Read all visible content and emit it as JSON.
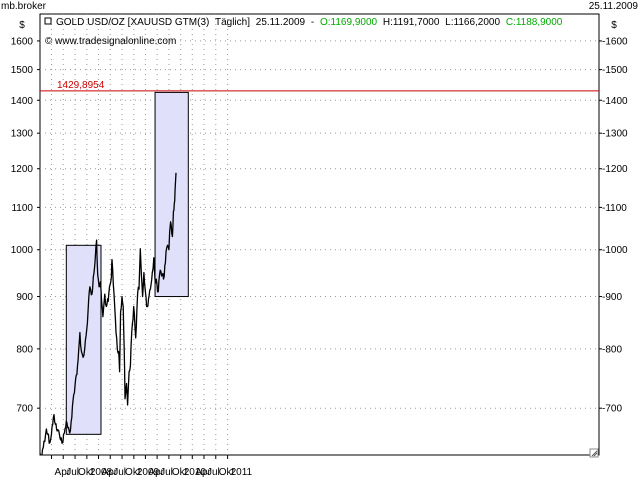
{
  "header": {
    "broker": "mb.broker",
    "date": "25.11.2009"
  },
  "legend": {
    "instrument": "GOLD USD/OZ [XAUUSD GTM(3)",
    "period": "Täglich]",
    "date": "25.11.2009",
    "open": "O:1169,9000",
    "high": "H:1191,7000",
    "low": "L:1166,2000",
    "close": "C:1188,9000",
    "copyright": "© www.tradesignalonline.com"
  },
  "colors": {
    "price_line": "#000000",
    "open_text": "#00aa00",
    "close_text": "#00aa00",
    "hline": "#cc0000",
    "box_fill": "#e0e0fa",
    "grid": "#999999"
  },
  "chart_data": {
    "type": "line",
    "ylabel": "$",
    "yscale": "log",
    "ylim": [
      630,
      1700
    ],
    "y_ticks": [
      700,
      800,
      900,
      1000,
      1100,
      1200,
      1300,
      1400,
      1500,
      1600
    ],
    "x_ticks": [
      "Apr",
      "Jul",
      "Okt",
      "2008",
      "Apr",
      "Jul",
      "Okt",
      "2009",
      "Apr",
      "Jul",
      "Okt",
      "2010",
      "Apr",
      "Jul",
      "Okt",
      "2011"
    ],
    "horizontal_line": {
      "value": 1429.8954,
      "label": "1429,8954"
    },
    "boxes": [
      {
        "x_start": "2007-07-25",
        "x_end": "2008-04-20",
        "y_low": 660,
        "y_high": 1010
      },
      {
        "x_start": "2009-06-15",
        "x_end": "2010-03-01",
        "y_low": 900,
        "y_high": 1425
      }
    ],
    "series": [
      {
        "points": [
          [
            "2007-01-02",
            632
          ],
          [
            "2007-01-15",
            628
          ],
          [
            "2007-02-01",
            650
          ],
          [
            "2007-02-20",
            668
          ],
          [
            "2007-03-01",
            660
          ],
          [
            "2007-03-20",
            648
          ],
          [
            "2007-04-05",
            672
          ],
          [
            "2007-04-20",
            690
          ],
          [
            "2007-05-01",
            675
          ],
          [
            "2007-05-15",
            665
          ],
          [
            "2007-06-01",
            660
          ],
          [
            "2007-06-15",
            655
          ],
          [
            "2007-06-28",
            648
          ],
          [
            "2007-07-10",
            662
          ],
          [
            "2007-07-25",
            680
          ],
          [
            "2007-08-05",
            670
          ],
          [
            "2007-08-20",
            662
          ],
          [
            "2007-09-01",
            680
          ],
          [
            "2007-09-15",
            712
          ],
          [
            "2007-10-01",
            738
          ],
          [
            "2007-10-15",
            755
          ],
          [
            "2007-10-25",
            780
          ],
          [
            "2007-11-08",
            830
          ],
          [
            "2007-11-20",
            795
          ],
          [
            "2007-12-03",
            785
          ],
          [
            "2007-12-15",
            800
          ],
          [
            "2007-12-31",
            835
          ],
          [
            "2008-01-15",
            895
          ],
          [
            "2008-01-25",
            920
          ],
          [
            "2008-02-10",
            905
          ],
          [
            "2008-02-25",
            948
          ],
          [
            "2008-03-05",
            975
          ],
          [
            "2008-03-17",
            1022
          ],
          [
            "2008-03-25",
            945
          ],
          [
            "2008-04-05",
            920
          ],
          [
            "2008-04-15",
            930
          ],
          [
            "2008-04-25",
            890
          ],
          [
            "2008-05-05",
            860
          ],
          [
            "2008-05-20",
            905
          ],
          [
            "2008-06-01",
            880
          ],
          [
            "2008-06-15",
            890
          ],
          [
            "2008-06-30",
            925
          ],
          [
            "2008-07-10",
            940
          ],
          [
            "2008-07-15",
            978
          ],
          [
            "2008-07-25",
            925
          ],
          [
            "2008-08-05",
            880
          ],
          [
            "2008-08-15",
            830
          ],
          [
            "2008-08-25",
            800
          ],
          [
            "2008-09-05",
            795
          ],
          [
            "2008-09-12",
            760
          ],
          [
            "2008-09-20",
            870
          ],
          [
            "2008-10-01",
            900
          ],
          [
            "2008-10-10",
            880
          ],
          [
            "2008-10-18",
            800
          ],
          [
            "2008-10-24",
            715
          ],
          [
            "2008-11-05",
            740
          ],
          [
            "2008-11-13",
            705
          ],
          [
            "2008-11-25",
            760
          ],
          [
            "2008-12-05",
            770
          ],
          [
            "2008-12-15",
            830
          ],
          [
            "2008-12-31",
            880
          ],
          [
            "2009-01-15",
            820
          ],
          [
            "2009-01-30",
            905
          ],
          [
            "2009-02-10",
            915
          ],
          [
            "2009-02-20",
            1002
          ],
          [
            "2009-03-01",
            945
          ],
          [
            "2009-03-10",
            900
          ],
          [
            "2009-03-20",
            950
          ],
          [
            "2009-04-01",
            910
          ],
          [
            "2009-04-10",
            880
          ],
          [
            "2009-04-25",
            895
          ],
          [
            "2009-05-10",
            915
          ],
          [
            "2009-05-25",
            950
          ],
          [
            "2009-06-05",
            982
          ],
          [
            "2009-06-15",
            935
          ],
          [
            "2009-06-30",
            925
          ],
          [
            "2009-07-10",
            910
          ],
          [
            "2009-07-25",
            955
          ],
          [
            "2009-08-10",
            945
          ],
          [
            "2009-08-25",
            942
          ],
          [
            "2009-09-08",
            995
          ],
          [
            "2009-09-20",
            1010
          ],
          [
            "2009-10-01",
            1000
          ],
          [
            "2009-10-14",
            1065
          ],
          [
            "2009-10-28",
            1030
          ],
          [
            "2009-11-05",
            1090
          ],
          [
            "2009-11-12",
            1110
          ],
          [
            "2009-11-18",
            1145
          ],
          [
            "2009-11-25",
            1189
          ]
        ]
      }
    ]
  }
}
